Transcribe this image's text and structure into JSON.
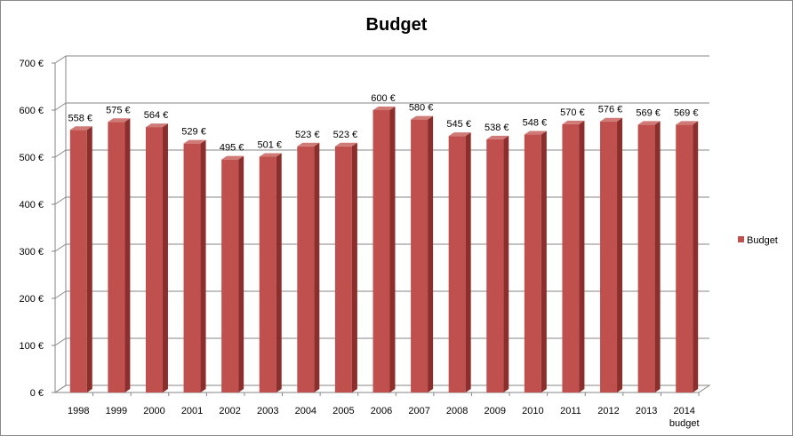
{
  "chart_data": {
    "type": "bar",
    "title": "Budget",
    "xlabel": "",
    "ylabel": "",
    "categories": [
      "1998",
      "1999",
      "2000",
      "2001",
      "2002",
      "2003",
      "2004",
      "2005",
      "2006",
      "2007",
      "2008",
      "2009",
      "2010",
      "2011",
      "2012",
      "2013",
      "2014 budget"
    ],
    "category_labels": [
      [
        "1998"
      ],
      [
        "1999"
      ],
      [
        "2000"
      ],
      [
        "2001"
      ],
      [
        "2002"
      ],
      [
        "2003"
      ],
      [
        "2004"
      ],
      [
        "2005"
      ],
      [
        "2006"
      ],
      [
        "2007"
      ],
      [
        "2008"
      ],
      [
        "2009"
      ],
      [
        "2010"
      ],
      [
        "2011"
      ],
      [
        "2012"
      ],
      [
        "2013"
      ],
      [
        "2014",
        "budget"
      ]
    ],
    "series": [
      {
        "name": "Budget",
        "values": [
          558,
          575,
          564,
          529,
          495,
          501,
          523,
          523,
          600,
          580,
          545,
          538,
          548,
          570,
          576,
          569,
          569
        ]
      }
    ],
    "value_labels": [
      "558 €",
      "575 €",
      "564 €",
      "529 €",
      "495 €",
      "501 €",
      "523 €",
      "523 €",
      "600 €",
      "580 €",
      "545 €",
      "538 €",
      "548 €",
      "570 €",
      "576 €",
      "569 €",
      "569 €"
    ],
    "ylim": [
      0,
      700
    ],
    "yticks": [
      0,
      100,
      200,
      300,
      400,
      500,
      600,
      700
    ],
    "ytick_labels": [
      "0 €",
      "100 €",
      "200 €",
      "300 €",
      "400 €",
      "500 €",
      "600 €",
      "700 €"
    ],
    "grid": true,
    "legend_position": "right",
    "colors": {
      "bar_front": "#c0504d",
      "bar_side": "#8c2f2c",
      "bar_top": "#d07a77",
      "gridline": "#868686",
      "wall_line": "#868686"
    }
  }
}
